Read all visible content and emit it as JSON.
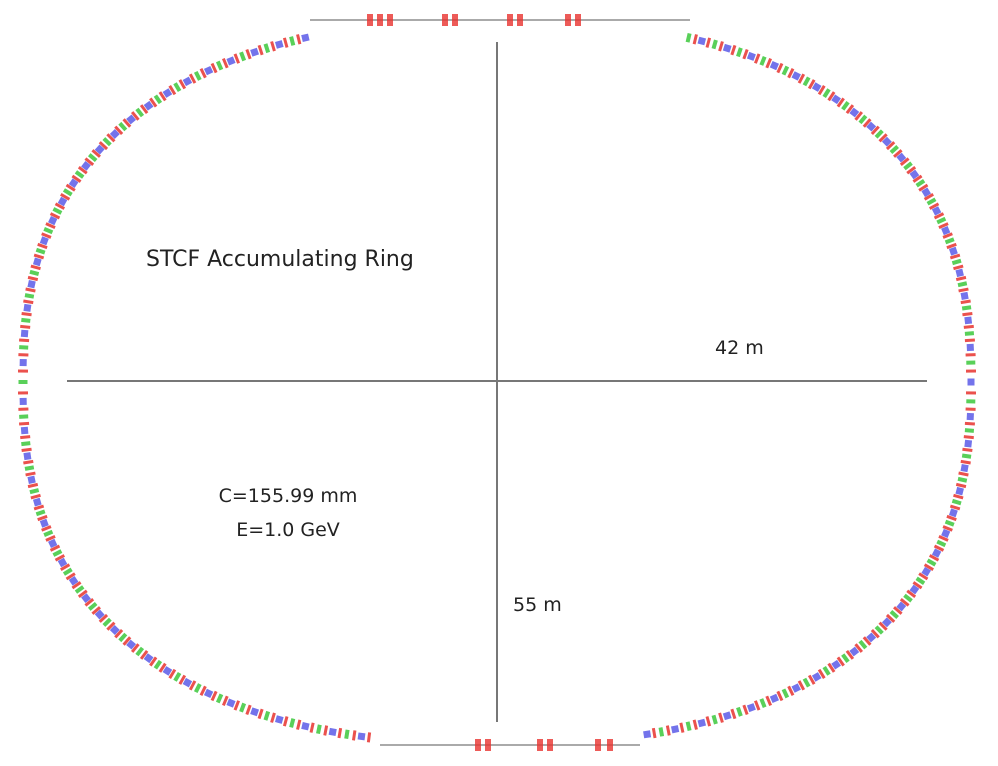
{
  "title": "STCF Accumulating Ring",
  "horizontal_dimension": "42 m",
  "vertical_dimension": "55 m",
  "parameters": [
    "C=155.99 mm",
    "E=1.0 GeV"
  ],
  "colors": {
    "dipole": "#e8322e",
    "quadrupole": "#5a5ae8",
    "sextupole": "#3cc83c",
    "axis": "#777777",
    "straight": "#aaaaaa"
  }
}
